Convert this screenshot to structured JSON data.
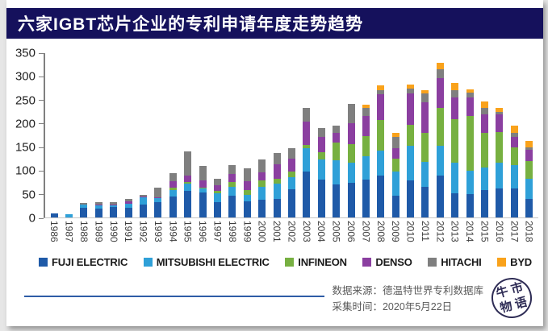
{
  "title": "六家IGBT芯片企业的专利申请年度走势趋势",
  "colors": {
    "title_bg": "#15115C",
    "accent_line": "#2E5CA6",
    "axis": "#808080"
  },
  "chart_data": {
    "type": "bar",
    "stacked": true,
    "title": "六家IGBT芯片企业的专利申请年度走势趋势",
    "grid": false,
    "legend_position": "bottom",
    "ylim": [
      0,
      350
    ],
    "ytick_step": 50,
    "categories": [
      "1986",
      "1987",
      "1988",
      "1989",
      "1990",
      "1991",
      "1992",
      "1993",
      "1994",
      "1995",
      "1996",
      "1997",
      "1998",
      "1999",
      "2000",
      "2001",
      "2002",
      "2003",
      "2004",
      "2005",
      "2006",
      "2007",
      "2008",
      "2009",
      "2010",
      "2011",
      "2012",
      "2013",
      "2014",
      "2015",
      "2016",
      "2017",
      "2018"
    ],
    "series": [
      {
        "name": "FUJI ELECTRIC",
        "color": "#1F5AA8",
        "values": [
          8,
          0,
          20,
          19,
          22,
          21,
          27,
          32,
          45,
          57,
          54,
          33,
          47,
          35,
          38,
          39,
          60,
          97,
          80,
          70,
          73,
          80,
          89,
          46,
          79,
          66,
          90,
          52,
          49,
          59,
          61,
          61,
          39
        ]
      },
      {
        "name": "MITSUBISHI ELECTRIC",
        "color": "#2FA0D8",
        "values": [
          0,
          7,
          7,
          7,
          4,
          8,
          16,
          9,
          14,
          15,
          8,
          18,
          19,
          13,
          28,
          33,
          26,
          51,
          43,
          51,
          43,
          51,
          54,
          52,
          74,
          52,
          63,
          64,
          51,
          48,
          56,
          50,
          44
        ]
      },
      {
        "name": "INFINEON",
        "color": "#77B041",
        "values": [
          0,
          0,
          0,
          0,
          0,
          0,
          0,
          0,
          4,
          3,
          2,
          6,
          10,
          10,
          13,
          11,
          11,
          7,
          16,
          39,
          41,
          43,
          64,
          28,
          44,
          63,
          80,
          93,
          117,
          74,
          65,
          39,
          37
        ]
      },
      {
        "name": "DENSO",
        "color": "#8B3FA0",
        "values": [
          0,
          0,
          0,
          2,
          2,
          5,
          2,
          2,
          15,
          14,
          15,
          12,
          17,
          19,
          17,
          30,
          28,
          50,
          32,
          20,
          44,
          43,
          55,
          21,
          67,
          64,
          63,
          47,
          38,
          39,
          38,
          22,
          24
        ]
      },
      {
        "name": "HITACHI",
        "color": "#7F7F7F",
        "values": [
          0,
          0,
          4,
          4,
          4,
          5,
          3,
          21,
          17,
          52,
          31,
          14,
          19,
          28,
          27,
          24,
          22,
          28,
          19,
          16,
          41,
          17,
          10,
          24,
          10,
          20,
          20,
          15,
          11,
          13,
          5,
          9,
          6
        ]
      },
      {
        "name": "BYD",
        "color": "#F9A21B",
        "values": [
          0,
          0,
          0,
          0,
          0,
          0,
          0,
          0,
          0,
          0,
          0,
          0,
          0,
          0,
          0,
          0,
          0,
          0,
          0,
          0,
          0,
          6,
          10,
          10,
          10,
          6,
          14,
          16,
          7,
          14,
          9,
          14,
          13
        ]
      }
    ]
  },
  "footer": {
    "source": "数据来源：德温特世界专利数据库",
    "collected": "采集时间：2020年5月22日",
    "logo_chars": [
      "牛",
      "市",
      "物",
      "语"
    ]
  }
}
